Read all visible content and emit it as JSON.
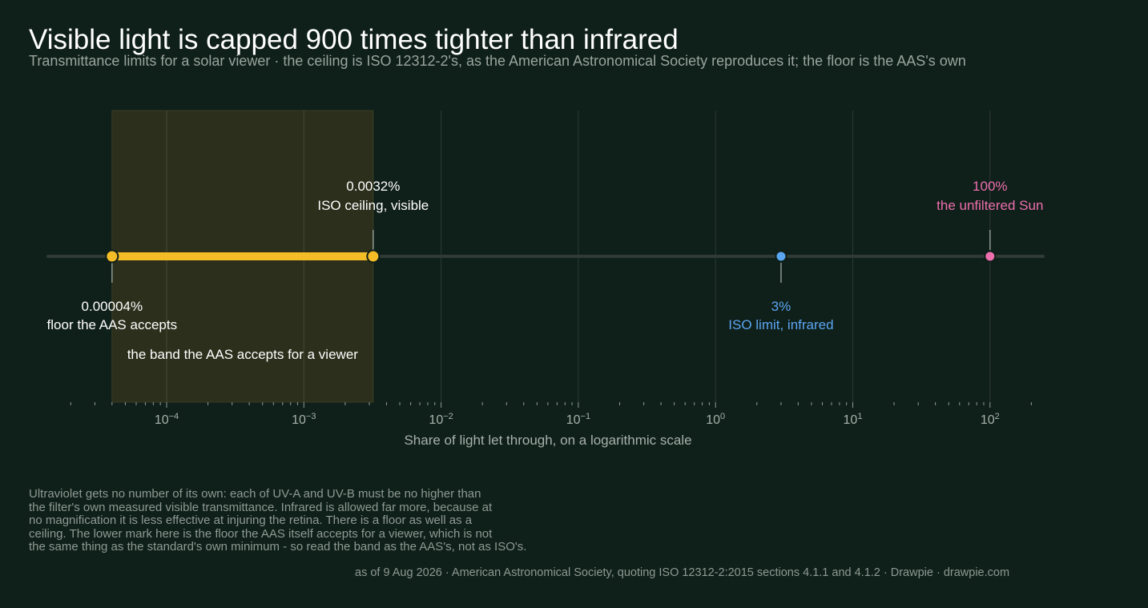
{
  "title": "Visible light is capped 900 times tighter than infrared",
  "subtitle": "Transmittance limits for a solar viewer · the ceiling is ISO 12312-2's, as the American Astronomical Society reproduces it; the floor is the AAS's own",
  "footnote_lines": [
    "Ultraviolet gets no number of its own: each of UV-A and UV-B must be no higher than",
    "the filter's own measured visible transmittance. Infrared is allowed far more, because at",
    "no magnification it is less effective at injuring the retina. There is a floor as well as a",
    "ceiling. The lower mark here is the floor the AAS itself accepts for a viewer, which is not",
    "the same thing as the standard's own minimum - so read the band as the AAS's, not as ISO's."
  ],
  "source": "as of 9 Aug 2026  ·  American Astronomical Society, quoting ISO 12312-2:2015 sections 4.1.1 and 4.1.2  ·  Drawpie · drawpie.com",
  "chart_data": {
    "type": "scatter",
    "xscale": "log",
    "xlim": [
      2e-05,
      250
    ],
    "xlabel": "Share of light let through, on a logarithmic scale",
    "x_ticks": [
      0.0001,
      0.001,
      0.01,
      0.1,
      1,
      10,
      100
    ],
    "x_tick_labels": [
      {
        "base": "10",
        "exp": "−4"
      },
      {
        "base": "10",
        "exp": "−3"
      },
      {
        "base": "10",
        "exp": "−2"
      },
      {
        "base": "10",
        "exp": "−1"
      },
      {
        "base": "10",
        "exp": "0"
      },
      {
        "base": "10",
        "exp": "1"
      },
      {
        "base": "10",
        "exp": "2"
      }
    ],
    "grid": "vertical",
    "band": {
      "from": 4e-05,
      "to": 0.0032,
      "label": "the band the AAS accepts for a viewer",
      "color": "#2b2f1b"
    },
    "range_line": {
      "from": 4e-05,
      "to": 0.0032,
      "color": "#f4bc26"
    },
    "points": [
      {
        "x": 4e-05,
        "value_label": "0.00004%",
        "label": "floor the AAS accepts",
        "color": "#f4bc26",
        "text_color": "#ffffff",
        "label_side": "below"
      },
      {
        "x": 0.0032,
        "value_label": "0.0032%",
        "label": "ISO ceiling, visible",
        "color": "#f4bc26",
        "text_color": "#ffffff",
        "label_side": "above"
      },
      {
        "x": 3,
        "value_label": "3%",
        "label": "ISO limit, infrared",
        "color": "#5ba6f2",
        "text_color": "#5ba6f2",
        "label_side": "below"
      },
      {
        "x": 100,
        "value_label": "100%",
        "label": "the unfiltered Sun",
        "color": "#ee6fae",
        "text_color": "#ee6fae",
        "label_side": "above"
      }
    ]
  }
}
